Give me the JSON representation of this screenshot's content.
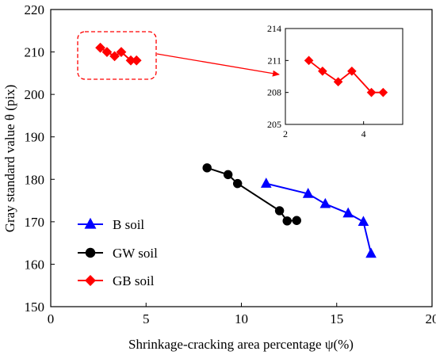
{
  "chart_data": [
    {
      "type": "line",
      "xlabel": "Shrinkage-cracking area percentage ψ(%)",
      "ylabel": "Gray standard value θ (pix)",
      "xlim": [
        0,
        20
      ],
      "ylim": [
        150,
        220
      ],
      "xticks": [
        0,
        5,
        10,
        15,
        20
      ],
      "yticks": [
        150,
        160,
        170,
        180,
        190,
        200,
        210,
        220
      ],
      "grid": false,
      "legend_position": "bottom-left",
      "series": [
        {
          "name": "B soil",
          "color": "#0000ff",
          "marker": "triangle",
          "x": [
            11.3,
            13.5,
            14.4,
            15.6,
            16.4,
            16.8
          ],
          "y": [
            179,
            176.6,
            174.2,
            172,
            170,
            162.5
          ]
        },
        {
          "name": "GW soil",
          "color": "#000000",
          "marker": "circle",
          "x": [
            8.2,
            9.3,
            9.8,
            12.0,
            12.4,
            12.9
          ],
          "y": [
            182.7,
            181.1,
            179.0,
            172.6,
            170.2,
            170.3
          ]
        },
        {
          "name": "GB soil",
          "color": "#ff0000",
          "marker": "diamond",
          "x": [
            2.6,
            2.95,
            3.35,
            3.7,
            4.2,
            4.5
          ],
          "y": [
            211,
            210,
            209,
            210,
            208,
            208
          ]
        }
      ]
    },
    {
      "type": "line",
      "role": "inset",
      "xlim": [
        2,
        5
      ],
      "ylim": [
        205,
        214
      ],
      "xticks": [
        2,
        4
      ],
      "yticks": [
        205,
        208,
        211,
        214
      ],
      "grid": false,
      "series": [
        {
          "name": "GB soil",
          "color": "#ff0000",
          "marker": "diamond",
          "x": [
            2.6,
            2.95,
            3.35,
            3.7,
            4.2,
            4.5
          ],
          "y": [
            211,
            210,
            209,
            210,
            208,
            208
          ]
        }
      ]
    }
  ]
}
